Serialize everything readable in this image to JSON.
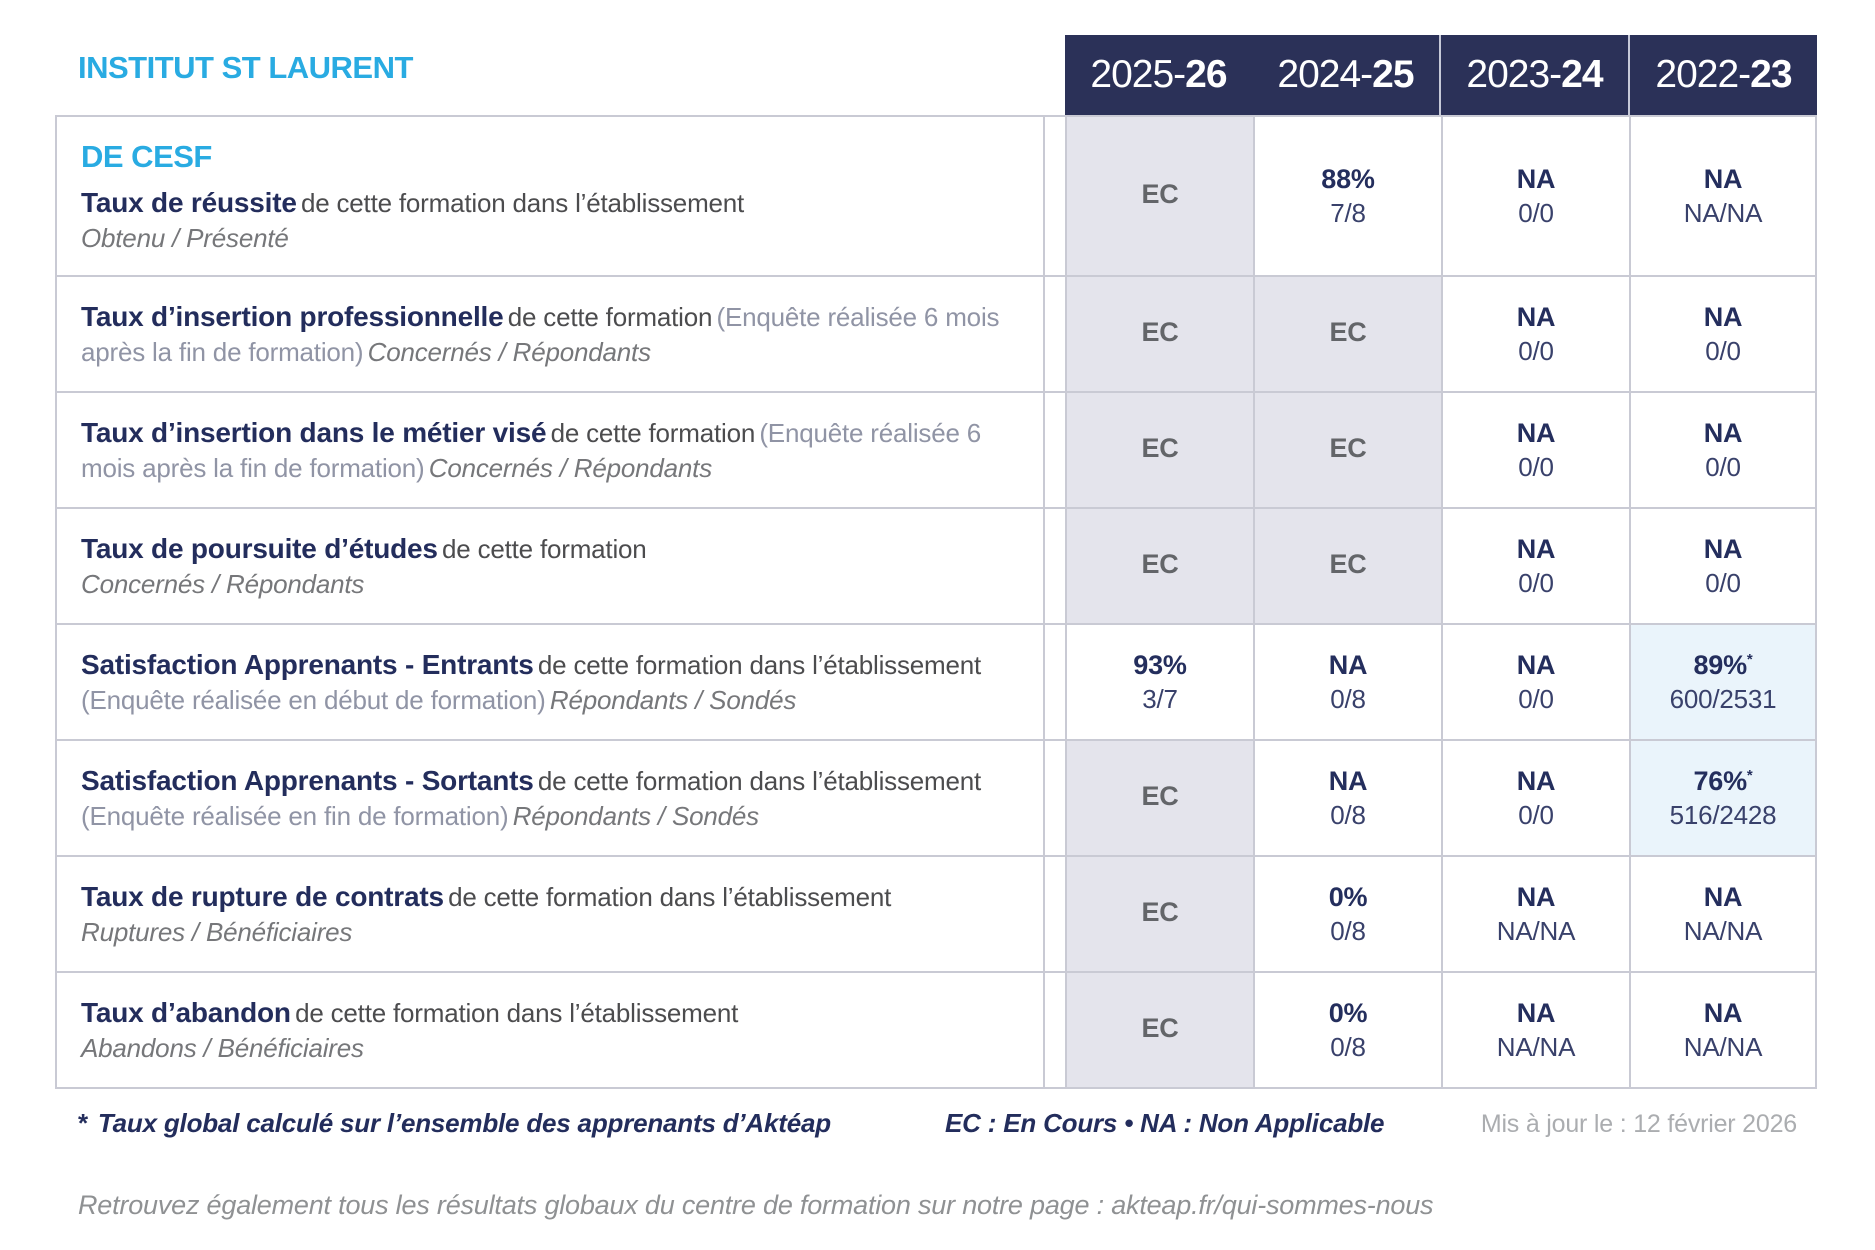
{
  "colors": {
    "accent_cyan": "#29abe2",
    "header_navy": "#2b3158",
    "text_navy": "#232d5c",
    "ec_cell_bg": "#e4e4ec",
    "highlight_cell_bg": "#eaf4fb",
    "grid_border": "#c9cad4"
  },
  "institute": "INSTITUT ST LAURENT",
  "formation": "DE CESF",
  "years": [
    {
      "prefix": "2025-",
      "bold": "26"
    },
    {
      "prefix": "2024-",
      "bold": "25"
    },
    {
      "prefix": "2023-",
      "bold": "24"
    },
    {
      "prefix": "2022-",
      "bold": "23"
    }
  ],
  "rows": [
    {
      "heading": "DE CESF",
      "title": "Taux de réussite",
      "mid": "de cette formation dans l’établissement",
      "paren": "",
      "sub": "Obtenu / Présenté",
      "values": [
        {
          "main": "EC",
          "sub": "",
          "style": "ec"
        },
        {
          "main": "88%",
          "sub": "7/8",
          "style": ""
        },
        {
          "main": "NA",
          "sub": "0/0",
          "style": ""
        },
        {
          "main": "NA",
          "sub": "NA/NA",
          "style": ""
        }
      ]
    },
    {
      "title": "Taux d’insertion professionnelle",
      "mid": "de cette formation",
      "paren": "(Enquête réalisée 6 mois après la fin de formation)",
      "sub": "Concernés / Répondants",
      "values": [
        {
          "main": "EC",
          "sub": "",
          "style": "ec"
        },
        {
          "main": "EC",
          "sub": "",
          "style": "ec"
        },
        {
          "main": "NA",
          "sub": "0/0",
          "style": ""
        },
        {
          "main": "NA",
          "sub": "0/0",
          "style": ""
        }
      ]
    },
    {
      "title": "Taux d’insertion dans le métier visé",
      "mid": "de cette formation",
      "paren": "(Enquête réalisée 6 mois après la fin de formation)",
      "sub": "Concernés / Répondants",
      "values": [
        {
          "main": "EC",
          "sub": "",
          "style": "ec"
        },
        {
          "main": "EC",
          "sub": "",
          "style": "ec"
        },
        {
          "main": "NA",
          "sub": "0/0",
          "style": ""
        },
        {
          "main": "NA",
          "sub": "0/0",
          "style": ""
        }
      ]
    },
    {
      "title": "Taux de poursuite d’études",
      "mid": "de cette formation",
      "paren": "",
      "sub": "Concernés / Répondants",
      "values": [
        {
          "main": "EC",
          "sub": "",
          "style": "ec"
        },
        {
          "main": "EC",
          "sub": "",
          "style": "ec"
        },
        {
          "main": "NA",
          "sub": "0/0",
          "style": ""
        },
        {
          "main": "NA",
          "sub": "0/0",
          "style": ""
        }
      ]
    },
    {
      "title": "Satisfaction Apprenants - Entrants",
      "mid": "de cette formation dans l’établissement",
      "paren": "(Enquête réalisée en début de formation)",
      "sub": "Répondants / Sondés",
      "values": [
        {
          "main": "93%",
          "sub": "3/7",
          "style": ""
        },
        {
          "main": "NA",
          "sub": "0/8",
          "style": ""
        },
        {
          "main": "NA",
          "sub": "0/0",
          "style": ""
        },
        {
          "main": "89%",
          "star": "*",
          "sub": "600/2531",
          "style": "blue"
        }
      ]
    },
    {
      "title": "Satisfaction Apprenants - Sortants",
      "mid": "de cette formation dans l’établissement",
      "paren": "(Enquête réalisée en fin de formation)",
      "sub": "Répondants / Sondés",
      "values": [
        {
          "main": "EC",
          "sub": "",
          "style": "ec"
        },
        {
          "main": "NA",
          "sub": "0/8",
          "style": ""
        },
        {
          "main": "NA",
          "sub": "0/0",
          "style": ""
        },
        {
          "main": "76%",
          "star": "*",
          "sub": "516/2428",
          "style": "blue"
        }
      ]
    },
    {
      "title": "Taux de rupture de contrats",
      "mid": "de cette formation dans l’établissement",
      "paren": "",
      "sub": "Ruptures / Bénéficiaires",
      "values": [
        {
          "main": "EC",
          "sub": "",
          "style": "ec"
        },
        {
          "main": "0%",
          "sub": "0/8",
          "style": ""
        },
        {
          "main": "NA",
          "sub": "NA/NA",
          "style": ""
        },
        {
          "main": "NA",
          "sub": "NA/NA",
          "style": ""
        }
      ]
    },
    {
      "title": "Taux d’abandon",
      "mid": "de cette formation dans l’établissement",
      "paren": "",
      "sub": "Abandons / Bénéficiaires",
      "values": [
        {
          "main": "EC",
          "sub": "",
          "style": "ec"
        },
        {
          "main": "0%",
          "sub": "0/8",
          "style": ""
        },
        {
          "main": "NA",
          "sub": "NA/NA",
          "style": ""
        },
        {
          "main": "NA",
          "sub": "NA/NA",
          "style": ""
        }
      ]
    }
  ],
  "footnote": {
    "star": "*",
    "text": "Taux global calculé sur l’ensemble des apprenants d’Aktéap",
    "legend": "EC : En Cours  •  NA : Non Applicable",
    "updated": "Mis à jour le : 12 février 2026"
  },
  "bottom_note": "Retrouvez également tous les résultats globaux du centre de formation sur notre page : akteap.fr/qui-sommes-nous"
}
